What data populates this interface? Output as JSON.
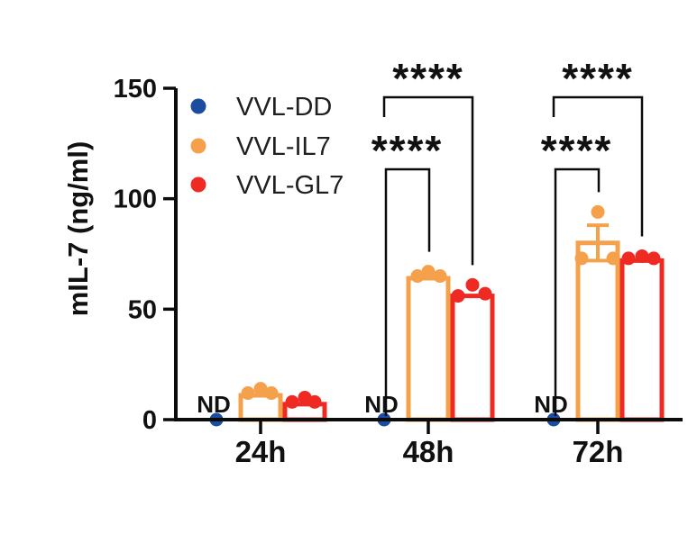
{
  "figure": {
    "background": "#ffffff",
    "description": "Grouped bar chart of mIL-7 concentration over time with ND scatter points and significance brackets"
  },
  "chart_data": {
    "type": "bar",
    "title": "",
    "xlabel": "",
    "ylabel": "mIL-7 (ng/ml)",
    "ylim": [
      0,
      150
    ],
    "yticks": [
      "0",
      "50",
      "100",
      "150"
    ],
    "categories": [
      "24h",
      "48h",
      "72h"
    ],
    "grid": false,
    "legend_position": "top-left-inside",
    "nd_label": "ND",
    "axis_color": "#0b0b0b",
    "text_color": "#111111",
    "series": [
      {
        "name": "VVL-DD",
        "color": "#1b4c9f",
        "style": "scatter-on-axis",
        "values": [
          "ND",
          "ND",
          "ND"
        ]
      },
      {
        "name": "VVL-IL7",
        "color": "#f5a04b",
        "style": "outline-bar-with-points",
        "bar_means": [
          11,
          64,
          80
        ],
        "points": [
          [
            12,
            14,
            12
          ],
          [
            65,
            67,
            65
          ],
          [
            73,
            94,
            73
          ]
        ],
        "error_bars": [
          null,
          null,
          {
            "low": 72,
            "high": 88
          }
        ]
      },
      {
        "name": "VVL-GL7",
        "color": "#ee2a22",
        "style": "outline-bar-with-points",
        "bar_means": [
          7,
          56,
          72
        ],
        "points": [
          [
            8,
            10,
            8
          ],
          [
            56,
            61,
            57
          ],
          [
            73,
            74,
            73
          ]
        ],
        "error_bars": [
          null,
          null,
          null
        ]
      }
    ],
    "significance": [
      {
        "label": "****",
        "category": "48h",
        "from": "VVL-DD",
        "to": "VVL-IL7",
        "level": "inner"
      },
      {
        "label": "****",
        "category": "48h",
        "from": "VVL-DD",
        "to": "VVL-GL7",
        "level": "outer"
      },
      {
        "label": "****",
        "category": "72h",
        "from": "VVL-DD",
        "to": "VVL-IL7",
        "level": "inner"
      },
      {
        "label": "****",
        "category": "72h",
        "from": "VVL-DD",
        "to": "VVL-GL7",
        "level": "outer"
      }
    ]
  }
}
